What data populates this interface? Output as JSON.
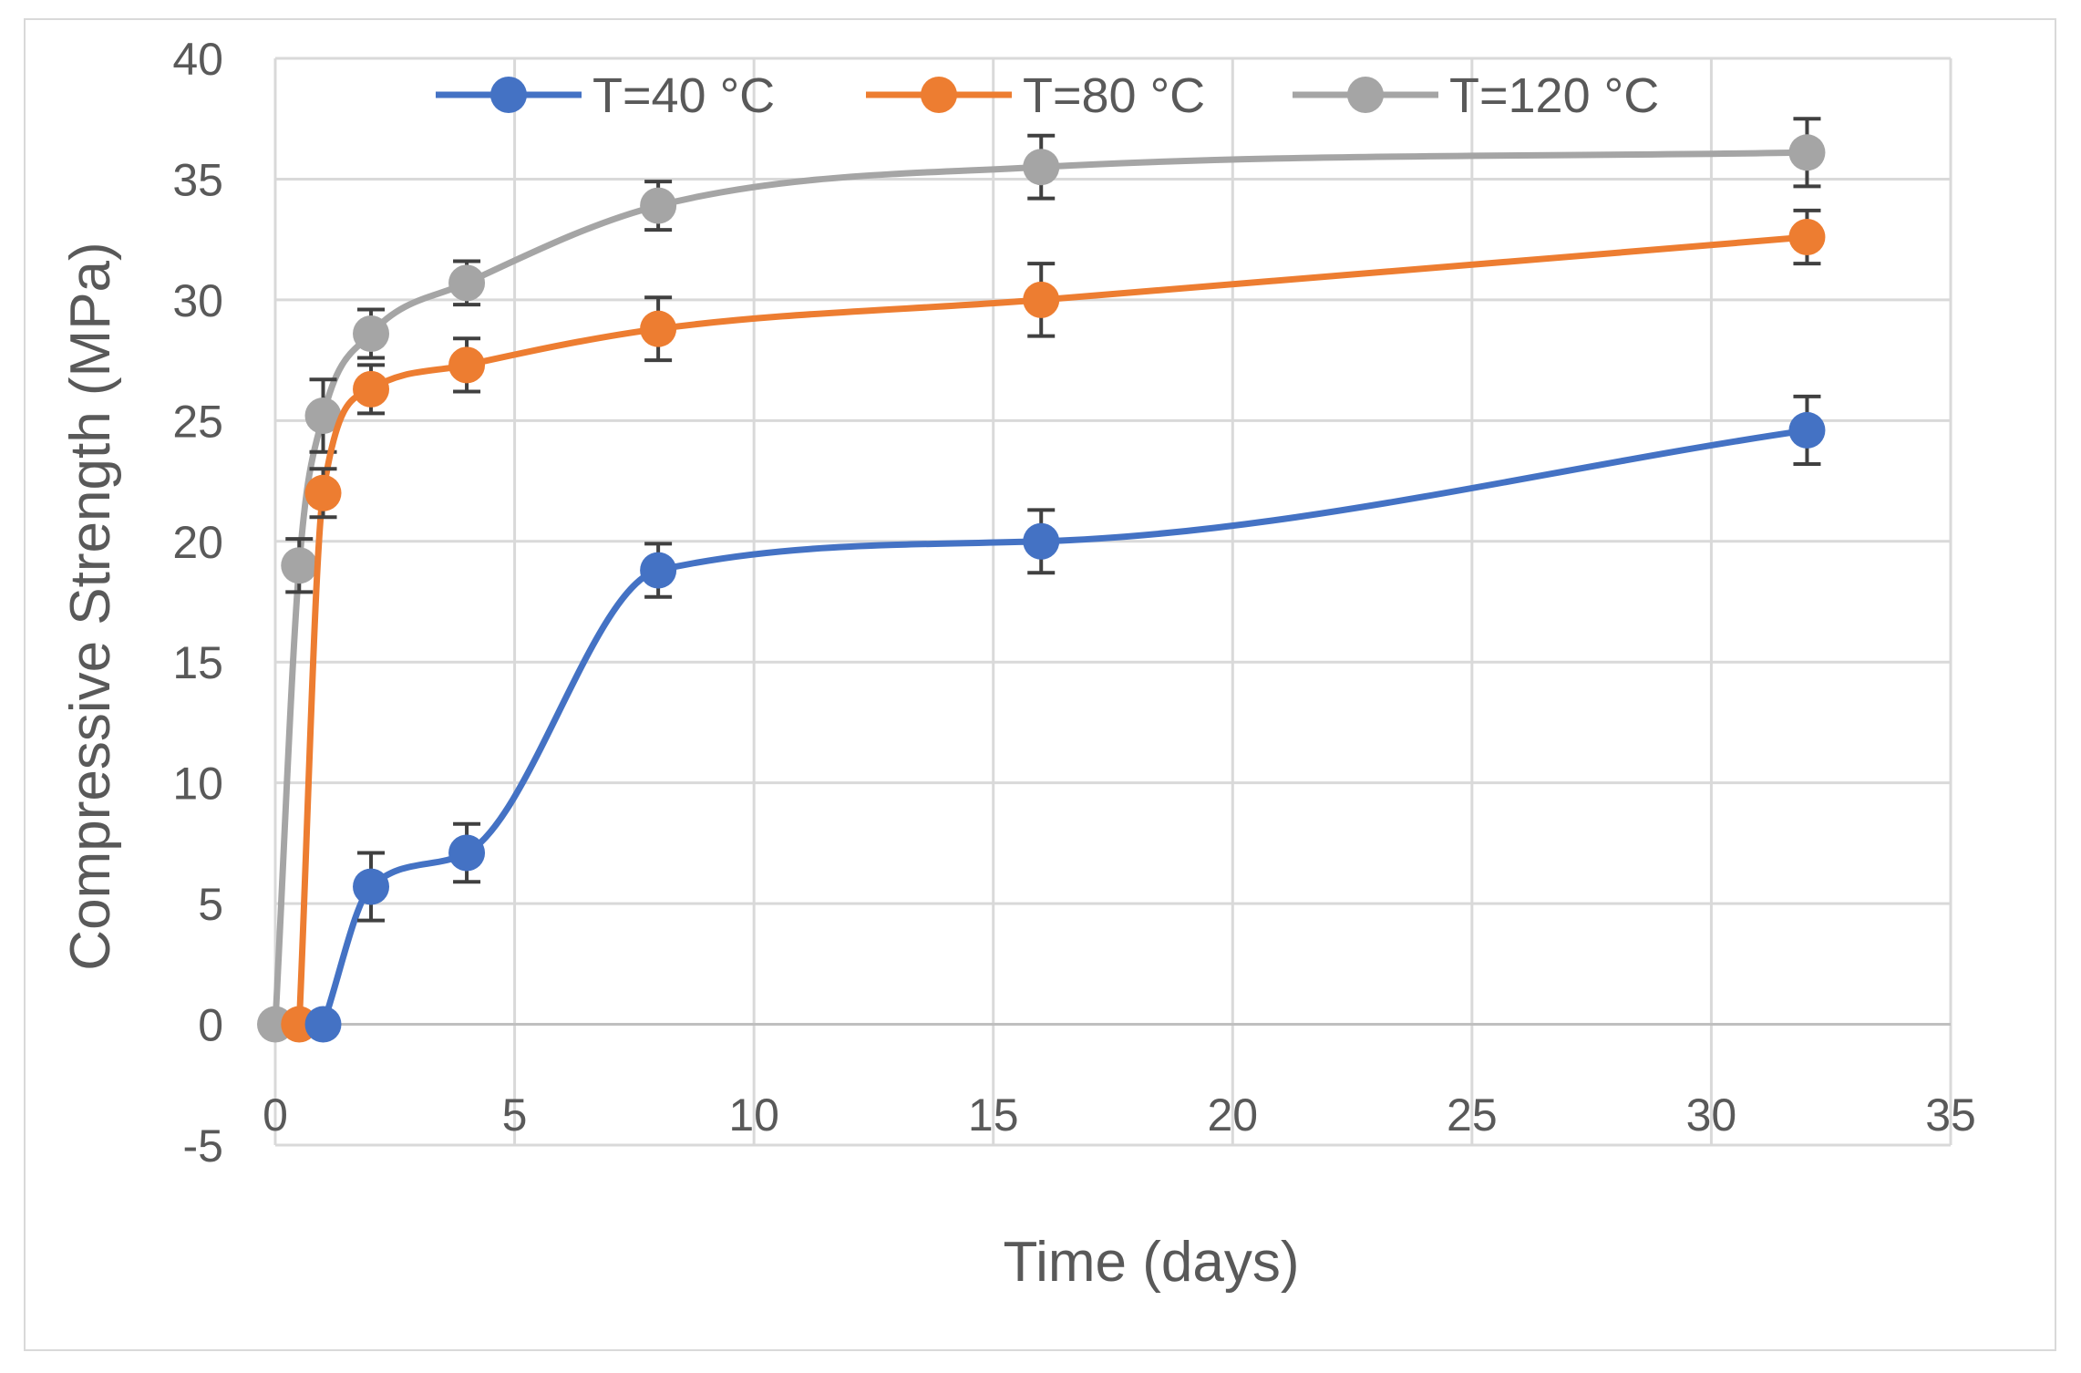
{
  "chart_data": {
    "type": "scatter",
    "xlabel": "Time (days)",
    "ylabel": "Compressive Strength (MPa)",
    "xlim": [
      0,
      35
    ],
    "ylim": [
      -5,
      40
    ],
    "x_ticks": [
      "0",
      "5",
      "10",
      "15",
      "20",
      "25",
      "30",
      "35"
    ],
    "y_ticks": [
      "-5",
      "0",
      "5",
      "10",
      "15",
      "20",
      "25",
      "30",
      "35",
      "40"
    ],
    "grid": true,
    "legend_position": "top",
    "series": [
      {
        "name": "T=40 °C",
        "color": "#4472c4",
        "points": [
          [
            1,
            0
          ],
          [
            2,
            5.7
          ],
          [
            4,
            7.1
          ],
          [
            8,
            18.8
          ],
          [
            16,
            20.0
          ],
          [
            32,
            24.6
          ]
        ],
        "errors": [
          0,
          1.4,
          1.2,
          1.1,
          1.3,
          1.4
        ]
      },
      {
        "name": "T=80 °C",
        "color": "#ed7d31",
        "points": [
          [
            0.5,
            0
          ],
          [
            1,
            22.0
          ],
          [
            2,
            26.3
          ],
          [
            4,
            27.3
          ],
          [
            8,
            28.8
          ],
          [
            16,
            30.0
          ],
          [
            32,
            32.6
          ]
        ],
        "errors": [
          0,
          1.0,
          1.0,
          1.1,
          1.3,
          1.5,
          1.1
        ]
      },
      {
        "name": "T=120 °C",
        "color": "#a5a5a5",
        "points": [
          [
            0,
            0
          ],
          [
            0.5,
            19.0
          ],
          [
            1,
            25.2
          ],
          [
            2,
            28.6
          ],
          [
            4,
            30.7
          ],
          [
            8,
            33.9
          ],
          [
            16,
            35.5
          ],
          [
            32,
            36.1
          ]
        ],
        "errors": [
          0,
          1.1,
          1.5,
          1.0,
          0.9,
          1.0,
          1.3,
          1.4
        ]
      }
    ]
  }
}
